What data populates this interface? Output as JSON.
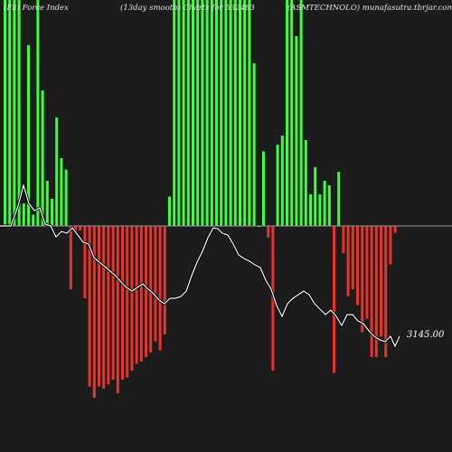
{
  "header": {
    "left": "(Fii) Force Index",
    "middle": "(13day smooth) Charts for 532483",
    "right": "(ASMTECHNOLO) munafasutra.tbrjar.com"
  },
  "colors": {
    "background": "#1c1c1c",
    "positive_bar": "#3cff3c",
    "negative_bar": "#e8322a",
    "zero_line": "#9a9a9a",
    "price_line": "#ffffff"
  },
  "chart_data": {
    "type": "bar",
    "title": "(Fii) Force Index",
    "series": [
      {
        "name": "Force Index",
        "values": [
          100,
          100,
          100,
          100,
          10,
          80,
          5,
          100,
          60,
          20,
          12,
          48,
          30,
          25,
          -28,
          -3,
          -2,
          -32,
          -71,
          -76,
          -71,
          -72,
          -70,
          -68,
          -74,
          -68,
          -67,
          -64,
          -61,
          -60,
          -58,
          -56,
          -51,
          -55,
          -48,
          13,
          100,
          100,
          100,
          100,
          100,
          100,
          100,
          100,
          100,
          100,
          100,
          100,
          100,
          100,
          100,
          100,
          100,
          72,
          0,
          33,
          -5,
          -64,
          36,
          40,
          100,
          100,
          84,
          100,
          38,
          14,
          26,
          14,
          20,
          18,
          -65,
          24,
          -12,
          -31,
          -28,
          -35,
          -47,
          -41,
          -58,
          -58,
          -49,
          -58,
          -17,
          -3
        ],
        "x": [
          1,
          2,
          3,
          4,
          5,
          6,
          7,
          8,
          9,
          10,
          11,
          12,
          13,
          14,
          15,
          16,
          17,
          18,
          19,
          20,
          21,
          22,
          23,
          24,
          25,
          26,
          27,
          28,
          29,
          30,
          31,
          32,
          33,
          34,
          35,
          36,
          37,
          38,
          39,
          40,
          41,
          42,
          43,
          44,
          45,
          46,
          47,
          48,
          49,
          50,
          51,
          52,
          53,
          54,
          55,
          56,
          57,
          58,
          59,
          60,
          61,
          62,
          63,
          64,
          65,
          66,
          67,
          68,
          69,
          70,
          71,
          72,
          73,
          74,
          75,
          76,
          77,
          78,
          79,
          80,
          81,
          82,
          83,
          84
        ]
      },
      {
        "name": "Price",
        "type": "line",
        "values": [
          [
            0,
            250
          ],
          [
            12,
            250
          ],
          [
            20,
            228
          ],
          [
            26,
            205
          ],
          [
            32,
            225
          ],
          [
            38,
            233
          ],
          [
            44,
            230
          ],
          [
            50,
            248
          ],
          [
            56,
            250
          ],
          [
            62,
            262
          ],
          [
            68,
            256
          ],
          [
            74,
            258
          ],
          [
            80,
            252
          ],
          [
            86,
            260
          ],
          [
            92,
            268
          ],
          [
            98,
            270
          ],
          [
            104,
            285
          ],
          [
            110,
            290
          ],
          [
            116,
            295
          ],
          [
            122,
            300
          ],
          [
            128,
            305
          ],
          [
            134,
            312
          ],
          [
            140,
            318
          ],
          [
            146,
            322
          ],
          [
            152,
            318
          ],
          [
            158,
            314
          ],
          [
            164,
            320
          ],
          [
            170,
            325
          ],
          [
            176,
            332
          ],
          [
            182,
            336
          ],
          [
            188,
            330
          ],
          [
            194,
            330
          ],
          [
            200,
            328
          ],
          [
            206,
            322
          ],
          [
            212,
            305
          ],
          [
            218,
            290
          ],
          [
            224,
            278
          ],
          [
            230,
            263
          ],
          [
            236,
            252
          ],
          [
            241,
            253
          ],
          [
            246,
            258
          ],
          [
            252,
            260
          ],
          [
            258,
            270
          ],
          [
            264,
            282
          ],
          [
            270,
            286
          ],
          [
            276,
            289
          ],
          [
            282,
            293
          ],
          [
            288,
            296
          ],
          [
            294,
            310
          ],
          [
            300,
            320
          ],
          [
            306,
            338
          ],
          [
            312,
            350
          ],
          [
            318,
            336
          ],
          [
            324,
            330
          ],
          [
            330,
            326
          ],
          [
            336,
            322
          ],
          [
            342,
            326
          ],
          [
            348,
            336
          ],
          [
            354,
            342
          ],
          [
            360,
            348
          ],
          [
            366,
            343
          ],
          [
            372,
            350
          ],
          [
            378,
            360
          ],
          [
            384,
            348
          ],
          [
            390,
            348
          ],
          [
            396,
            355
          ],
          [
            402,
            358
          ],
          [
            408,
            366
          ],
          [
            414,
            372
          ],
          [
            420,
            376
          ],
          [
            426,
            378
          ],
          [
            432,
            372
          ],
          [
            437,
            383
          ],
          [
            442,
            372
          ]
        ]
      }
    ],
    "annotations": [
      "3145.00"
    ],
    "ylim": [
      -100,
      100
    ],
    "grid": false,
    "legend": "none"
  }
}
